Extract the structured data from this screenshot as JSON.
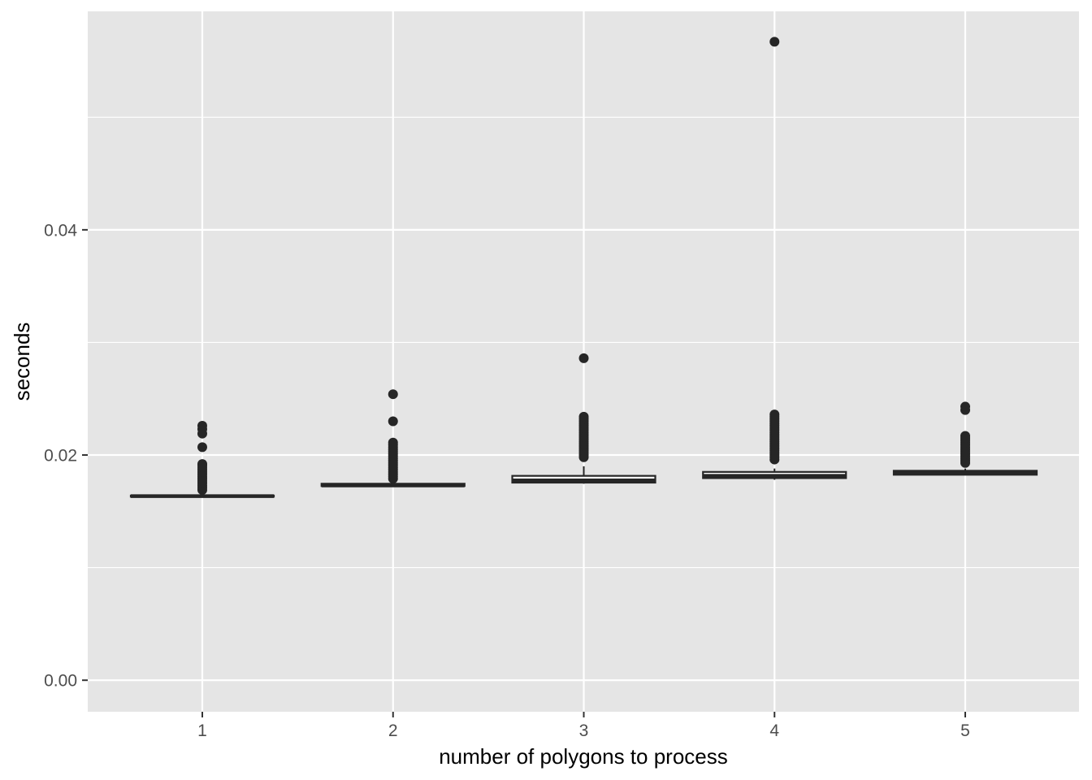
{
  "chart_data": {
    "type": "boxplot",
    "xlabel": "number of polygons to process",
    "ylabel": "seconds",
    "categories": [
      "1",
      "2",
      "3",
      "4",
      "5"
    ],
    "ylim": [
      -0.0028,
      0.0594
    ],
    "y_ticks": [
      {
        "value": 0.0,
        "label": "0.00"
      },
      {
        "value": 0.02,
        "label": "0.02"
      },
      {
        "value": 0.04,
        "label": "0.04"
      }
    ],
    "y_minor_grid": [
      0.01,
      0.03,
      0.05
    ],
    "grid": true,
    "background": "#e5e5e5",
    "grid_color": "#ffffff",
    "box_color": "#262626",
    "boxes": [
      {
        "category": "1",
        "lower_whisker": 0.01625,
        "q1": 0.0163,
        "median": 0.01635,
        "q3": 0.0164,
        "upper_whisker": 0.01655,
        "outliers": [
          0.0169,
          0.0171,
          0.0173,
          0.0175,
          0.0177,
          0.0179,
          0.0181,
          0.0183,
          0.0185,
          0.0187,
          0.0189,
          0.0191,
          0.0192,
          0.0207,
          0.0219,
          0.0223,
          0.0226
        ]
      },
      {
        "category": "2",
        "lower_whisker": 0.01715,
        "q1": 0.01725,
        "median": 0.0173,
        "q3": 0.01745,
        "upper_whisker": 0.0176,
        "outliers": [
          0.0179,
          0.0181,
          0.0183,
          0.0185,
          0.0187,
          0.0189,
          0.0191,
          0.0193,
          0.0195,
          0.0197,
          0.0199,
          0.0201,
          0.0203,
          0.0205,
          0.0207,
          0.0209,
          0.0211,
          0.023,
          0.0254
        ]
      },
      {
        "category": "3",
        "lower_whisker": 0.01745,
        "q1": 0.01755,
        "median": 0.01775,
        "q3": 0.01815,
        "upper_whisker": 0.019,
        "outliers": [
          0.0198,
          0.02,
          0.0202,
          0.0204,
          0.0206,
          0.0208,
          0.021,
          0.0212,
          0.0214,
          0.0216,
          0.0218,
          0.022,
          0.0222,
          0.0224,
          0.0226,
          0.0228,
          0.023,
          0.0232,
          0.0234,
          0.0286
        ]
      },
      {
        "category": "4",
        "lower_whisker": 0.0178,
        "q1": 0.01795,
        "median": 0.01815,
        "q3": 0.0185,
        "upper_whisker": 0.0188,
        "outliers": [
          0.0196,
          0.0198,
          0.02,
          0.0202,
          0.0204,
          0.0206,
          0.0208,
          0.021,
          0.0212,
          0.0214,
          0.0216,
          0.0218,
          0.022,
          0.0222,
          0.0224,
          0.0226,
          0.0228,
          0.023,
          0.0232,
          0.0234,
          0.0236,
          0.0567
        ]
      },
      {
        "category": "5",
        "lower_whisker": 0.0182,
        "q1": 0.01825,
        "median": 0.0184,
        "q3": 0.0186,
        "upper_whisker": 0.0188,
        "outliers": [
          0.0193,
          0.0195,
          0.0197,
          0.0199,
          0.0201,
          0.0203,
          0.0205,
          0.0207,
          0.0209,
          0.0211,
          0.0213,
          0.0215,
          0.0217,
          0.024,
          0.0243
        ]
      }
    ]
  }
}
